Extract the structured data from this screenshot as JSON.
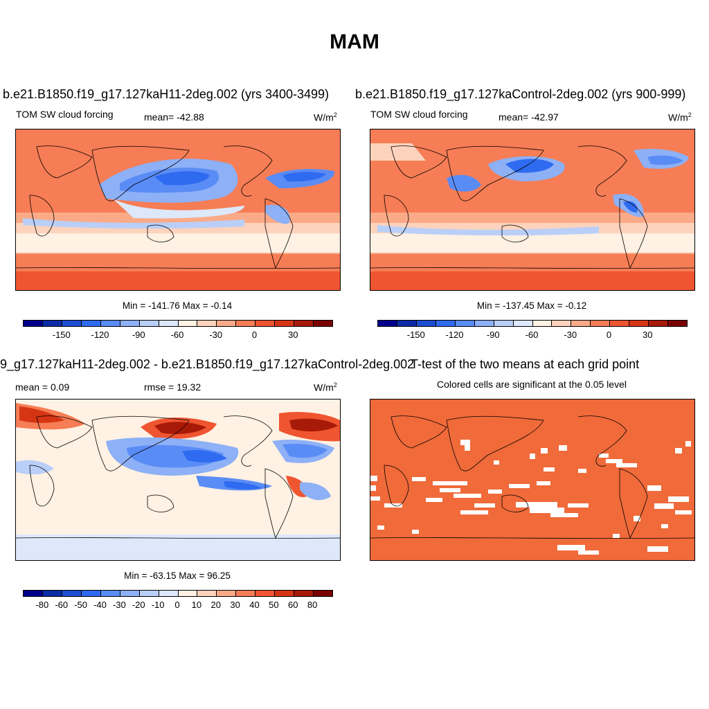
{
  "title": "MAM",
  "panels": [
    {
      "title": "b.e21.B1850.f19_g17.127kaH11-2deg.002 (yrs 3400-3499)",
      "left_label": "TOM SW cloud forcing",
      "center_label": "mean= -42.88",
      "units": "W/m",
      "units_sup": "2",
      "minmax": "Min = -141.76 Max =  -0.14",
      "colorbar_ticks": [
        "-150",
        "-120",
        "-90",
        "-60",
        "-30",
        "0",
        "30"
      ]
    },
    {
      "title": "b.e21.B1850.f19_g17.127kaControl-2deg.002 (yrs 900-999)",
      "left_label": "TOM SW cloud forcing",
      "center_label": "mean= -42.97",
      "units": "W/m",
      "units_sup": "2",
      "minmax": "Min = -137.45 Max =  -0.12",
      "colorbar_ticks": [
        "-150",
        "-120",
        "-90",
        "-60",
        "-30",
        "0",
        "30"
      ]
    },
    {
      "title": "9_g17.127kaH11-2deg.002 - b.e21.B1850.f19_g17.127kaControl-2deg.002",
      "left_label": "mean =   0.09",
      "center_label": "rmse =  19.32",
      "units": "W/m",
      "units_sup": "2",
      "minmax": "Min = -63.15 Max =  96.25",
      "colorbar_ticks": [
        "-80",
        "-60",
        "-50",
        "-40",
        "-30",
        "-20",
        "-10",
        "0",
        "10",
        "20",
        "30",
        "40",
        "50",
        "60",
        "80"
      ]
    },
    {
      "title": "T-test of the two means at each grid point",
      "center_label": "Colored cells are significant at the 0.05 level"
    }
  ],
  "colors": {
    "abs_scale": [
      "#00008c",
      "#0b2ca6",
      "#1c4ed2",
      "#2f6bf0",
      "#5a8cf5",
      "#8db0f7",
      "#b9cff8",
      "#dde8fa",
      "#fff1e3",
      "#fdd3bd",
      "#fbaa88",
      "#f67d55",
      "#ef5530",
      "#d63514",
      "#a81a08",
      "#7a0000"
    ],
    "diff_scale": [
      "#00008c",
      "#0b2ca6",
      "#1c4ed2",
      "#2f6bf0",
      "#5a8cf5",
      "#8db0f7",
      "#b9cff8",
      "#dde8fa",
      "#fff1e3",
      "#fdd3bd",
      "#fbaa88",
      "#f67d55",
      "#ef5530",
      "#d63514",
      "#a81a08",
      "#7a0000"
    ],
    "ttest_fill": "#f06a3a"
  }
}
